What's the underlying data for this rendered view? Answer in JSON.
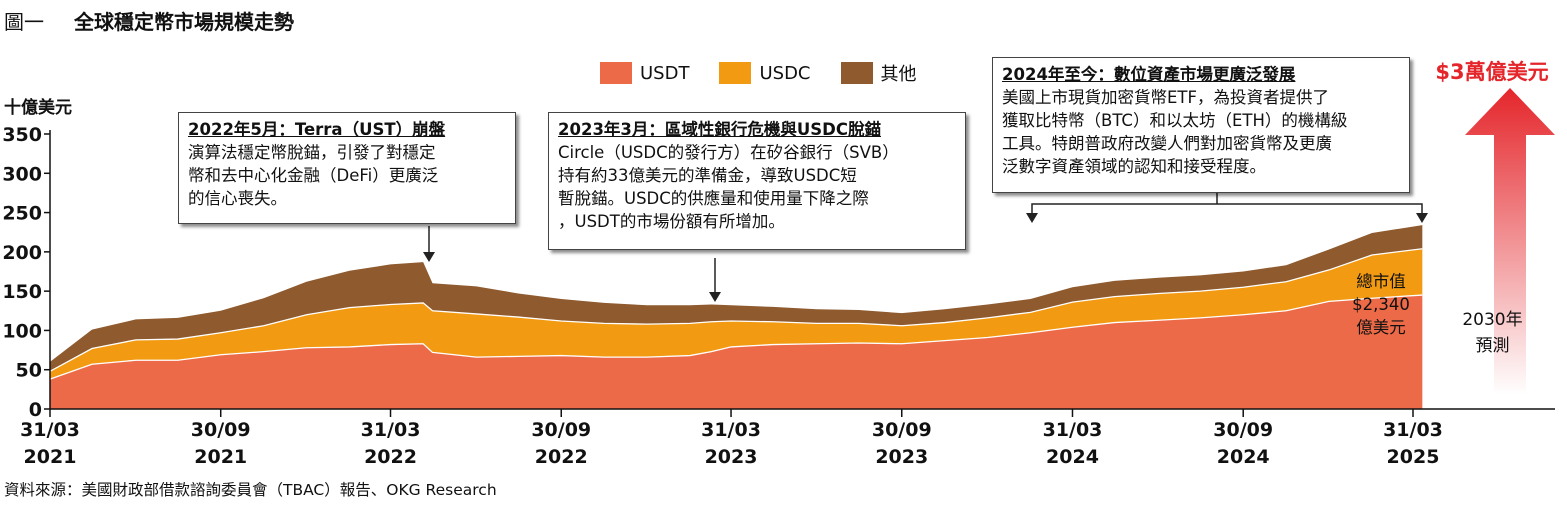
{
  "figure": {
    "number": "圖一",
    "title": "全球穩定幣市場規模走勢"
  },
  "source": "資料來源：美國財政部借款諮詢委員會（TBAC）報告、OKG Research",
  "target": {
    "label": "$3萬億美元",
    "forecast_label": [
      "2030年",
      "預測"
    ]
  },
  "total_label": [
    "總市值",
    "$2,340",
    "億美元"
  ],
  "annotations": [
    {
      "heading": "2022年5月：Terra（UST）崩盤",
      "body": [
        "演算法穩定幣脫錨，引發了對穩定",
        "幣和去中心化金融（DeFi）更廣泛",
        "的信心喪失。"
      ]
    },
    {
      "heading": "2023年3月：區域性銀行危機與USDC脫錨",
      "body": [
        "Circle（USDC的發行方）在矽谷銀行（SVB）",
        "持有約33億美元的準備金，導致USDC短",
        "暫脫錨。USDC的供應量和使用量下降之際",
        "，USDT的市場份額有所增加。"
      ]
    },
    {
      "heading": "2024年至今：數位資產市場更廣泛發展",
      "body": [
        "美國上市現貨加密貨幣ETF，為投資者提供了",
        "獲取比特幣（BTC）和以太坊（ETH）的機構級",
        "工具。特朗普政府改變人們對加密貨幣及更廣",
        "泛數字資產領域的認知和接受程度。"
      ]
    }
  ],
  "colors": {
    "USDT": "#ec6a47",
    "USDC": "#f29a12",
    "其他": "#8e5a2e",
    "arrow": "#e4262b",
    "text": "#111111"
  },
  "chart_data": {
    "type": "area",
    "stacked": true,
    "title": "全球穩定幣市場規模走勢",
    "ylabel": "十億美元",
    "xlabel": "",
    "ylim": [
      0,
      350
    ],
    "yticks": [
      0,
      50,
      100,
      150,
      200,
      250,
      300,
      350
    ],
    "x_tick_labels": [
      [
        "31/03",
        "2021"
      ],
      [
        "30/09",
        "2021"
      ],
      [
        "31/03",
        "2022"
      ],
      [
        "30/09",
        "2022"
      ],
      [
        "31/03",
        "2023"
      ],
      [
        "30/09",
        "2023"
      ],
      [
        "31/03",
        "2024"
      ],
      [
        "30/09",
        "2024"
      ],
      [
        "31/03",
        "2025"
      ]
    ],
    "x": [
      "2021-03-31",
      "2021-05-15",
      "2021-07-01",
      "2021-08-15",
      "2021-09-30",
      "2021-11-15",
      "2021-12-31",
      "2022-02-15",
      "2022-03-31",
      "2022-05-05",
      "2022-05-15",
      "2022-07-01",
      "2022-08-15",
      "2022-09-30",
      "2022-11-15",
      "2022-12-31",
      "2023-02-15",
      "2023-03-10",
      "2023-03-31",
      "2023-05-15",
      "2023-07-01",
      "2023-08-15",
      "2023-09-30",
      "2023-11-15",
      "2023-12-31",
      "2024-02-15",
      "2024-03-31",
      "2024-05-15",
      "2024-07-01",
      "2024-08-15",
      "2024-09-30",
      "2024-11-15",
      "2024-12-31",
      "2025-02-15",
      "2025-04-10"
    ],
    "series": [
      {
        "name": "USDT",
        "values": [
          38,
          57,
          62,
          62,
          69,
          73,
          78,
          79,
          82,
          83,
          72,
          66,
          67,
          68,
          66,
          66,
          68,
          73,
          79,
          82,
          83,
          84,
          83,
          87,
          91,
          97,
          104,
          110,
          113,
          116,
          120,
          125,
          137,
          141,
          145
        ]
      },
      {
        "name": "USDC",
        "values": [
          10,
          20,
          26,
          27,
          28,
          33,
          42,
          50,
          51,
          52,
          53,
          55,
          50,
          44,
          43,
          42,
          41,
          38,
          33,
          29,
          26,
          25,
          23,
          23,
          25,
          26,
          32,
          33,
          34,
          34,
          35,
          37,
          40,
          55,
          59
        ]
      },
      {
        "name": "其他",
        "values": [
          12,
          24,
          26,
          27,
          28,
          35,
          42,
          47,
          51,
          52,
          35,
          35,
          30,
          28,
          26,
          24,
          23,
          22,
          20,
          19,
          18,
          17,
          16,
          17,
          17,
          17,
          19,
          20,
          20,
          20,
          20,
          21,
          26,
          28,
          30
        ]
      }
    ]
  }
}
